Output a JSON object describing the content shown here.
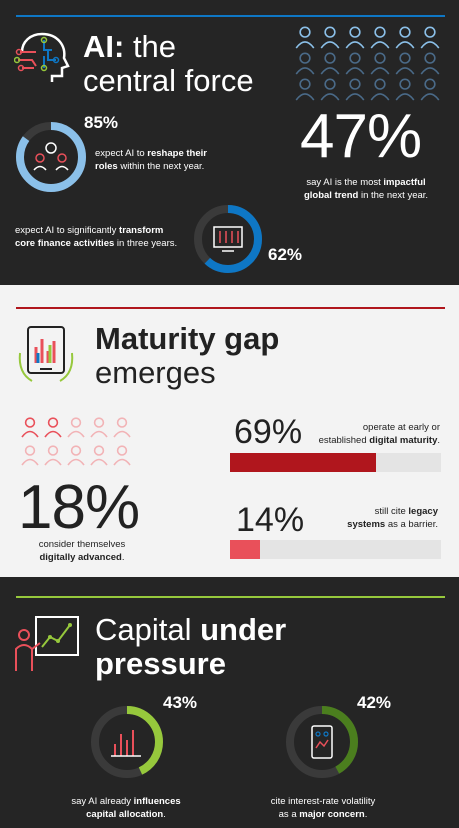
{
  "colors": {
    "blue": "#0e77c5",
    "light_blue": "#8bc0e9",
    "red": "#b0161d",
    "coral": "#e9505a",
    "green": "#96c83c",
    "dark_green": "#4b7e1e",
    "dark_bg": "#252525",
    "light_bg": "#f3f3f3"
  },
  "section1": {
    "title_bold": "AI:",
    "title_line1_rest": " the",
    "title_line2": "central force",
    "stat_85": {
      "value": "85%",
      "fraction": 0.85,
      "text_pre": "expect AI to ",
      "text_bold": "reshape their",
      "text_line2_bold": "roles",
      "text_line2_rest": " within the next year."
    },
    "stat_47": {
      "value": "47%",
      "text_line1_pre": "say AI is the most ",
      "text_line1_bold": "impactful",
      "text_line2_bold": "global trend",
      "text_line2_rest": " in the next year."
    },
    "stat_62": {
      "value": "62%",
      "fraction": 0.62,
      "text_line1_pre": "expect AI to significantly ",
      "text_line1_bold": "transform",
      "text_line2_bold": "core finance activities",
      "text_line2_rest": " in three years."
    }
  },
  "section2": {
    "title_line1": "Maturity gap",
    "title_line2": "emerges",
    "stat_18": {
      "value": "18%",
      "text_line1": "consider themselves",
      "text_line2_bold": "digitally advanced",
      "text_line2_rest": "."
    },
    "stat_69": {
      "value": "69%",
      "fraction": 0.69,
      "text_line1": "operate at early or",
      "text_line2_pre": "established ",
      "text_line2_bold": "digital maturity",
      "text_line2_rest": "."
    },
    "stat_14": {
      "value": "14%",
      "fraction": 0.14,
      "text_line1_pre": "still cite ",
      "text_line1_bold": "legacy",
      "text_line2_bold": "systems",
      "text_line2_rest": " as a barrier."
    }
  },
  "section3": {
    "title_line1_pre": "Capital ",
    "title_line1_bold": "under",
    "title_line2_bold": "pressure",
    "stat_43": {
      "value": "43%",
      "fraction": 0.43,
      "text_line1_pre": "say AI already ",
      "text_line1_bold": "influences",
      "text_line2_bold": "capital allocation",
      "text_line2_rest": "."
    },
    "stat_42": {
      "value": "42%",
      "fraction": 0.42,
      "text_line1": "cite interest-rate volatility",
      "text_line2_pre": "as a ",
      "text_line2_bold": "major concern",
      "text_line2_rest": "."
    }
  }
}
